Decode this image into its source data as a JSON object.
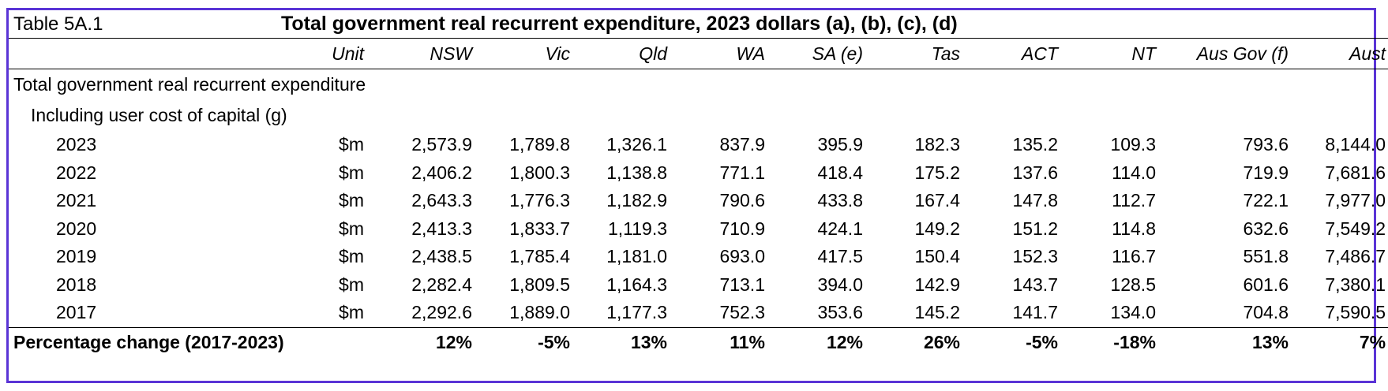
{
  "table_id": "Table 5A.1",
  "title": "Total government real recurrent expenditure, 2023 dollars (a), (b), (c), (d)",
  "columns": [
    "Unit",
    "NSW",
    "Vic",
    "Qld",
    "WA",
    "SA (e)",
    "Tas",
    "ACT",
    "NT",
    "Aus Gov (f)",
    "Aust"
  ],
  "section_label": "Total government real recurrent expenditure",
  "subsection_label": "Including user cost of capital (g)",
  "rows": [
    {
      "year": "2023",
      "unit": "$m",
      "values": [
        "2,573.9",
        "1,789.8",
        "1,326.1",
        "837.9",
        "395.9",
        "182.3",
        "135.2",
        "109.3",
        "793.6",
        "8,144.0"
      ]
    },
    {
      "year": "2022",
      "unit": "$m",
      "values": [
        "2,406.2",
        "1,800.3",
        "1,138.8",
        "771.1",
        "418.4",
        "175.2",
        "137.6",
        "114.0",
        "719.9",
        "7,681.6"
      ]
    },
    {
      "year": "2021",
      "unit": "$m",
      "values": [
        "2,643.3",
        "1,776.3",
        "1,182.9",
        "790.6",
        "433.8",
        "167.4",
        "147.8",
        "112.7",
        "722.1",
        "7,977.0"
      ]
    },
    {
      "year": "2020",
      "unit": "$m",
      "values": [
        "2,413.3",
        "1,833.7",
        "1,119.3",
        "710.9",
        "424.1",
        "149.2",
        "151.2",
        "114.8",
        "632.6",
        "7,549.2"
      ]
    },
    {
      "year": "2019",
      "unit": "$m",
      "values": [
        "2,438.5",
        "1,785.4",
        "1,181.0",
        "693.0",
        "417.5",
        "150.4",
        "152.3",
        "116.7",
        "551.8",
        "7,486.7"
      ]
    },
    {
      "year": "2018",
      "unit": "$m",
      "values": [
        "2,282.4",
        "1,809.5",
        "1,164.3",
        "713.1",
        "394.0",
        "142.9",
        "143.7",
        "128.5",
        "601.6",
        "7,380.1"
      ]
    },
    {
      "year": "2017",
      "unit": "$m",
      "values": [
        "2,292.6",
        "1,889.0",
        "1,177.3",
        "752.3",
        "353.6",
        "145.2",
        "141.7",
        "134.0",
        "704.8",
        "7,590.5"
      ]
    }
  ],
  "pct_change": {
    "label": "Percentage change (2017-2023)",
    "values": [
      "12%",
      "-5%",
      "13%",
      "11%",
      "12%",
      "26%",
      "-5%",
      "-18%",
      "13%",
      "7%"
    ]
  }
}
